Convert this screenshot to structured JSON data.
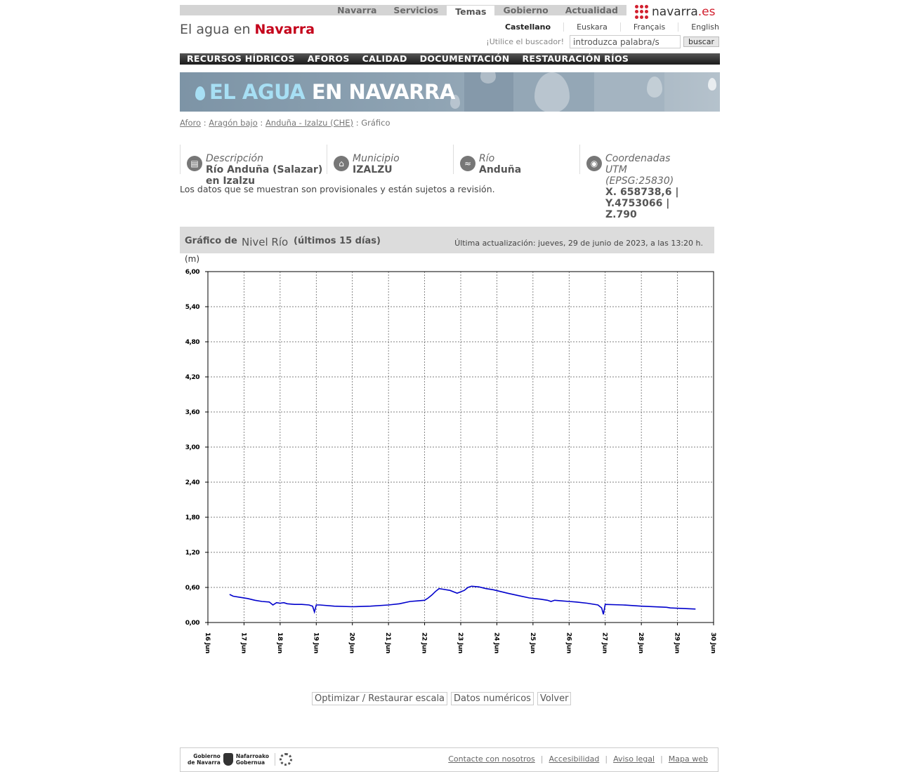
{
  "topnav": {
    "tabs": [
      "Navarra",
      "Servicios",
      "Temas",
      "Gobierno",
      "Actualidad"
    ],
    "active_tab": "Temas"
  },
  "logo": {
    "text": "navarra",
    "suffix": ".es"
  },
  "site_title": {
    "prefix": "El agua en",
    "emphasis": "Navarra"
  },
  "languages": [
    "Castellano",
    "Euskara",
    "Français",
    "English"
  ],
  "active_language": "Castellano",
  "search": {
    "hint": "¡Utilice el buscador!",
    "value": "introduzca palabra/s",
    "button": "buscar"
  },
  "main_menu": [
    "RECURSOS HÍDRICOS",
    "AFOROS",
    "CALIDAD",
    "DOCUMENTACIÓN",
    "RESTAURACIÓN RÍOS"
  ],
  "banner": {
    "title_light": "EL AGUA",
    "title_bold": "EN NAVARRA"
  },
  "breadcrumb": {
    "links": [
      "Aforo",
      "Aragón bajo",
      "Anduña - Izalzu (CHE)"
    ],
    "current": "Gráfico",
    "separator": ":"
  },
  "info": {
    "descripcion": {
      "label": "Descripción",
      "value_line1": "Río Anduña (Salazar)",
      "value_line2": "en Izalzu"
    },
    "municipio": {
      "label": "Municipio",
      "value": "IZALZU"
    },
    "rio": {
      "label": "Río",
      "value": "Anduña"
    },
    "coordenadas": {
      "label_line1": "Coordenadas",
      "label_line2": "UTM",
      "label_line3": "(EPSG:25830)",
      "x": "X. 658738,6 |",
      "y": "Y.4753066 |",
      "z": "Z.790"
    }
  },
  "notice": "Los datos que se muestran son provisionales y están sujetos a revisión.",
  "chart_header": {
    "prefix": "Gráfico de",
    "variable": "Nivel Río",
    "suffix": "(últimos 15 días)",
    "update": "Última actualización: jueves, 29 de junio de 2023, a las 13:20 h."
  },
  "chart_data": {
    "type": "line",
    "ylabel": "(m)",
    "ylim": [
      0,
      6
    ],
    "yticks": [
      "0,00",
      "0,60",
      "1,20",
      "1,80",
      "2,40",
      "3,00",
      "3,60",
      "4,20",
      "4,80",
      "5,40",
      "6,00"
    ],
    "xlim": [
      16,
      30
    ],
    "xticks": [
      "16 Jun",
      "17 Jun",
      "18 Jun",
      "19 Jun",
      "20 Jun",
      "21 Jun",
      "22 Jun",
      "23 Jun",
      "24 Jun",
      "25 Jun",
      "26 Jun",
      "27 Jun",
      "28 Jun",
      "29 Jun",
      "30 Jun"
    ],
    "grid": true,
    "color": "#0000cc",
    "series": [
      {
        "x": [
          16.6,
          16.7,
          16.9,
          17.1,
          17.3,
          17.5,
          17.7,
          17.8,
          17.9,
          18.0,
          18.1,
          18.2,
          18.4,
          18.6,
          18.8,
          18.9,
          18.95,
          19.0,
          19.1,
          19.5,
          20.0,
          20.5,
          21.0,
          21.3,
          21.6,
          21.8,
          22.0,
          22.1,
          22.2,
          22.3,
          22.4,
          22.5,
          22.7,
          22.9,
          23.1,
          23.2,
          23.3,
          23.5,
          23.7,
          23.9,
          24.1,
          24.3,
          24.6,
          24.9,
          25.2,
          25.4,
          25.5,
          25.6,
          25.8,
          26.0,
          26.2,
          26.5,
          26.8,
          26.9,
          26.95,
          27.0,
          27.5,
          28.0,
          28.7,
          28.8,
          29.5
        ],
        "y": [
          0.48,
          0.45,
          0.43,
          0.41,
          0.38,
          0.36,
          0.35,
          0.3,
          0.34,
          0.33,
          0.34,
          0.32,
          0.31,
          0.31,
          0.3,
          0.28,
          0.18,
          0.3,
          0.3,
          0.28,
          0.27,
          0.28,
          0.3,
          0.32,
          0.36,
          0.37,
          0.38,
          0.42,
          0.47,
          0.53,
          0.58,
          0.57,
          0.55,
          0.5,
          0.55,
          0.6,
          0.62,
          0.61,
          0.58,
          0.56,
          0.53,
          0.5,
          0.46,
          0.42,
          0.4,
          0.38,
          0.36,
          0.38,
          0.37,
          0.36,
          0.35,
          0.33,
          0.3,
          0.25,
          0.14,
          0.31,
          0.3,
          0.28,
          0.26,
          0.25,
          0.23
        ]
      }
    ]
  },
  "actions": [
    "Optimizar / Restaurar escala",
    "Datos numéricos",
    "Volver"
  ],
  "footer": {
    "gov_es_1": "Gobierno",
    "gov_es_2": "de Navarra",
    "gov_eu_1": "Nafarroako",
    "gov_eu_2": "Gobernua",
    "links": [
      "Contacte con nosotros",
      "Accesibilidad",
      "Aviso legal",
      "Mapa web"
    ]
  }
}
